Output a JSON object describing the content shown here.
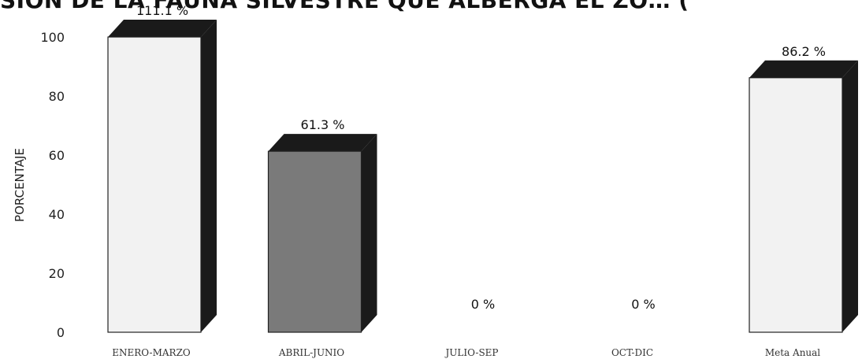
{
  "chart_data": {
    "type": "bar",
    "title": "SION DE LA FAUNA SILVESTRE QUE ALBERGA EL ZO… (",
    "xlabel": "",
    "ylabel": "PORCENTAJE",
    "ylim": [
      0,
      100
    ],
    "yticks": [
      "0",
      "20",
      "40",
      "60",
      "80",
      "100"
    ],
    "categories": [
      "ENERO-MARZO",
      "ABRIL-JUNIO",
      "JULIO-SEP",
      "OCT-DIC",
      "Meta Anual"
    ],
    "values": [
      111.1,
      61.3,
      0,
      0,
      86.2
    ],
    "value_labels": [
      "111.1 %",
      "61.3 %",
      "0 %",
      "0 %",
      "86.2 %"
    ],
    "bar_colors": [
      "#f2f2f2",
      "#7a7a7a",
      "#f2f2f2",
      "#f2f2f2",
      "#f2f2f2"
    ],
    "side_color": "#1a1a1a",
    "grid": false,
    "style": "3d-bar"
  }
}
